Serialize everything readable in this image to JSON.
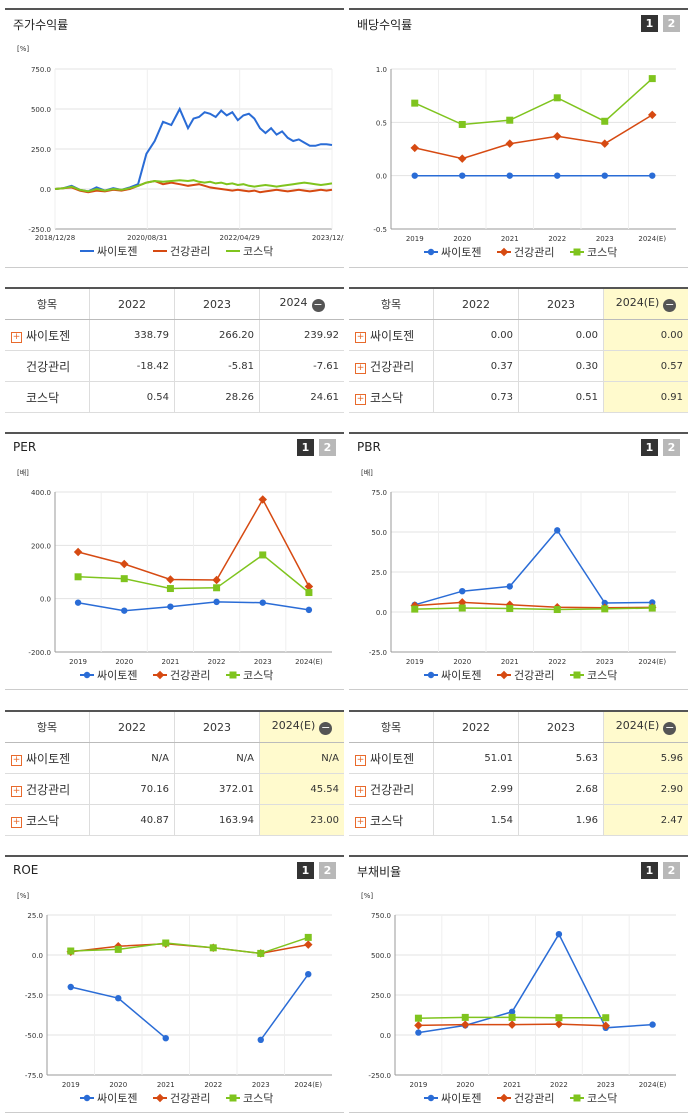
{
  "colors": {
    "s1": "#2a6cd6",
    "s2": "#d64a12",
    "s3": "#7fc41e"
  },
  "series_names": [
    "싸이토젠",
    "건강관리",
    "코스닥"
  ],
  "panels": {
    "stock": {
      "title": "주가수익률",
      "unit": "[%]"
    },
    "div": {
      "title": "배당수익률",
      "btn1": "1",
      "btn2": "2"
    },
    "per": {
      "title": "PER",
      "unit": "[배]",
      "btn1": "1",
      "btn2": "2"
    },
    "pbr": {
      "title": "PBR",
      "unit": "[배]",
      "btn1": "1",
      "btn2": "2"
    },
    "roe": {
      "title": "ROE",
      "unit": "[%]",
      "btn1": "1",
      "btn2": "2"
    },
    "debt": {
      "title": "부채비율",
      "unit": "[%]",
      "btn1": "1",
      "btn2": "2"
    }
  },
  "tables": {
    "t1": {
      "headers": [
        "항목",
        "2022",
        "2023",
        "2024"
      ],
      "rows": [
        {
          "label": "싸이토젠",
          "plus": true,
          "values": [
            "338.79",
            "266.20",
            "239.92"
          ]
        },
        {
          "label": "건강관리",
          "plus": false,
          "values": [
            "-18.42",
            "-5.81",
            "-7.61"
          ]
        },
        {
          "label": "코스닥",
          "plus": false,
          "values": [
            "0.54",
            "28.26",
            "24.61"
          ]
        }
      ]
    },
    "t2": {
      "headers": [
        "항목",
        "2022",
        "2023",
        "2024(E)"
      ],
      "rows": [
        {
          "label": "싸이토젠",
          "plus": true,
          "values": [
            "0.00",
            "0.00",
            "0.00"
          ]
        },
        {
          "label": "건강관리",
          "plus": true,
          "values": [
            "0.37",
            "0.30",
            "0.57"
          ]
        },
        {
          "label": "코스닥",
          "plus": true,
          "values": [
            "0.73",
            "0.51",
            "0.91"
          ]
        }
      ]
    },
    "t3": {
      "headers": [
        "항목",
        "2022",
        "2023",
        "2024(E)"
      ],
      "rows": [
        {
          "label": "싸이토젠",
          "plus": true,
          "values": [
            "N/A",
            "N/A",
            "N/A"
          ]
        },
        {
          "label": "건강관리",
          "plus": true,
          "values": [
            "70.16",
            "372.01",
            "45.54"
          ]
        },
        {
          "label": "코스닥",
          "plus": true,
          "values": [
            "40.87",
            "163.94",
            "23.00"
          ]
        }
      ]
    },
    "t4": {
      "headers": [
        "항목",
        "2022",
        "2023",
        "2024(E)"
      ],
      "rows": [
        {
          "label": "싸이토젠",
          "plus": true,
          "values": [
            "51.01",
            "5.63",
            "5.96"
          ]
        },
        {
          "label": "건강관리",
          "plus": true,
          "values": [
            "2.99",
            "2.68",
            "2.90"
          ]
        },
        {
          "label": "코스닥",
          "plus": true,
          "values": [
            "1.54",
            "1.96",
            "2.47"
          ]
        }
      ]
    }
  },
  "chart_data": [
    {
      "id": "stock",
      "type": "line",
      "title": "주가수익률",
      "ylabel": "[%]",
      "ylim": [
        -250,
        750
      ],
      "yticks": [
        "750.0",
        "500.0",
        "250.0",
        "0.0",
        "-250.0"
      ],
      "xticks": [
        "2018/12/28",
        "2020/08/31",
        "2022/04/29",
        "2023/12/28"
      ],
      "x": [
        0,
        0.03,
        0.06,
        0.09,
        0.12,
        0.15,
        0.18,
        0.21,
        0.24,
        0.27,
        0.3,
        0.33,
        0.36,
        0.39,
        0.42,
        0.45,
        0.48,
        0.5,
        0.52,
        0.54,
        0.56,
        0.58,
        0.6,
        0.62,
        0.64,
        0.66,
        0.68,
        0.7,
        0.72,
        0.74,
        0.76,
        0.78,
        0.8,
        0.82,
        0.84,
        0.86,
        0.88,
        0.9,
        0.92,
        0.94,
        0.96,
        0.98,
        1.0
      ],
      "series": [
        {
          "name": "싸이토젠",
          "values": [
            0,
            5,
            20,
            -5,
            -15,
            10,
            -10,
            5,
            -5,
            10,
            30,
            220,
            300,
            420,
            400,
            500,
            380,
            440,
            450,
            480,
            470,
            450,
            490,
            460,
            480,
            430,
            460,
            470,
            440,
            380,
            350,
            380,
            340,
            360,
            320,
            300,
            310,
            290,
            270,
            270,
            280,
            280,
            275
          ]
        },
        {
          "name": "건강관리",
          "values": [
            0,
            5,
            10,
            -10,
            -20,
            -10,
            -15,
            -5,
            -10,
            0,
            20,
            40,
            50,
            30,
            40,
            30,
            20,
            25,
            30,
            20,
            10,
            5,
            0,
            -5,
            -10,
            -5,
            -10,
            -15,
            -10,
            -20,
            -15,
            -10,
            -5,
            -10,
            -15,
            -10,
            -5,
            -10,
            -15,
            -10,
            -5,
            -10,
            -5
          ]
        },
        {
          "name": "코스닥",
          "values": [
            0,
            5,
            15,
            -5,
            -15,
            0,
            -10,
            0,
            -5,
            5,
            20,
            40,
            50,
            45,
            50,
            55,
            50,
            55,
            45,
            40,
            45,
            35,
            40,
            30,
            35,
            25,
            30,
            20,
            15,
            20,
            25,
            20,
            15,
            20,
            25,
            30,
            35,
            40,
            35,
            30,
            25,
            30,
            35
          ]
        }
      ]
    },
    {
      "id": "div",
      "type": "line",
      "title": "배당수익률",
      "ylim": [
        -0.5,
        1.0
      ],
      "yticks": [
        "1.0",
        "0.5",
        "0.0",
        "-0.5"
      ],
      "categories": [
        "2019",
        "2020",
        "2021",
        "2022",
        "2023",
        "2024(E)"
      ],
      "series": [
        {
          "name": "싸이토젠",
          "values": [
            0.0,
            0.0,
            0.0,
            0.0,
            0.0,
            0.0
          ]
        },
        {
          "name": "건강관리",
          "values": [
            0.26,
            0.16,
            0.3,
            0.37,
            0.3,
            0.57
          ]
        },
        {
          "name": "코스닥",
          "values": [
            0.68,
            0.48,
            0.52,
            0.73,
            0.51,
            0.91
          ]
        }
      ]
    },
    {
      "id": "per",
      "type": "line",
      "title": "PER",
      "ylabel": "[배]",
      "ylim": [
        -200,
        400
      ],
      "yticks": [
        "400.0",
        "200.0",
        "0.0",
        "-200.0"
      ],
      "categories": [
        "2019",
        "2020",
        "2021",
        "2022",
        "2023",
        "2024(E)"
      ],
      "series": [
        {
          "name": "싸이토젠",
          "values": [
            -15,
            -45,
            -30,
            -12,
            -15,
            -42
          ]
        },
        {
          "name": "건강관리",
          "values": [
            175,
            130,
            72,
            70.16,
            372.01,
            45.54
          ]
        },
        {
          "name": "코스닥",
          "values": [
            82,
            75,
            38,
            40.87,
            163.94,
            23.0
          ]
        }
      ]
    },
    {
      "id": "pbr",
      "type": "line",
      "title": "PBR",
      "ylabel": "[배]",
      "ylim": [
        -25,
        75
      ],
      "yticks": [
        "75.0",
        "50.0",
        "25.0",
        "0.0",
        "-25.0"
      ],
      "categories": [
        "2019",
        "2020",
        "2021",
        "2022",
        "2023",
        "2024(E)"
      ],
      "series": [
        {
          "name": "싸이토젠",
          "values": [
            4.5,
            13,
            16,
            51.01,
            5.63,
            5.96
          ]
        },
        {
          "name": "건강관리",
          "values": [
            4,
            6,
            4.5,
            2.99,
            2.68,
            2.9
          ]
        },
        {
          "name": "코스닥",
          "values": [
            1.8,
            2.5,
            2.2,
            1.54,
            1.96,
            2.47
          ]
        }
      ]
    },
    {
      "id": "roe",
      "type": "line",
      "title": "ROE",
      "ylabel": "[%]",
      "ylim": [
        -75,
        25
      ],
      "yticks": [
        "25.0",
        "0.0",
        "-25.0",
        "-50.0",
        "-75.0"
      ],
      "categories": [
        "2019",
        "2020",
        "2021",
        "2022",
        "2023",
        "2024(E)"
      ],
      "series": [
        {
          "name": "싸이토젠",
          "values": [
            -20,
            -27,
            -52,
            null,
            -53,
            -12
          ]
        },
        {
          "name": "건강관리",
          "values": [
            2,
            5.5,
            7,
            4.5,
            1,
            6.5
          ]
        },
        {
          "name": "코스닥",
          "values": [
            2.5,
            3.5,
            7.5,
            4.5,
            1,
            11
          ]
        }
      ]
    },
    {
      "id": "debt",
      "type": "line",
      "title": "부채비율",
      "ylabel": "[%]",
      "ylim": [
        -250,
        750
      ],
      "yticks": [
        "750.0",
        "500.0",
        "250.0",
        "0.0",
        "-250.0"
      ],
      "categories": [
        "2019",
        "2020",
        "2021",
        "2022",
        "2023",
        "2024(E)"
      ],
      "series": [
        {
          "name": "싸이토젠",
          "values": [
            15,
            60,
            145,
            630,
            45,
            65
          ]
        },
        {
          "name": "건강관리",
          "values": [
            60,
            65,
            65,
            68,
            58,
            null
          ]
        },
        {
          "name": "코스닥",
          "values": [
            105,
            110,
            110,
            108,
            108,
            null
          ]
        }
      ]
    }
  ]
}
